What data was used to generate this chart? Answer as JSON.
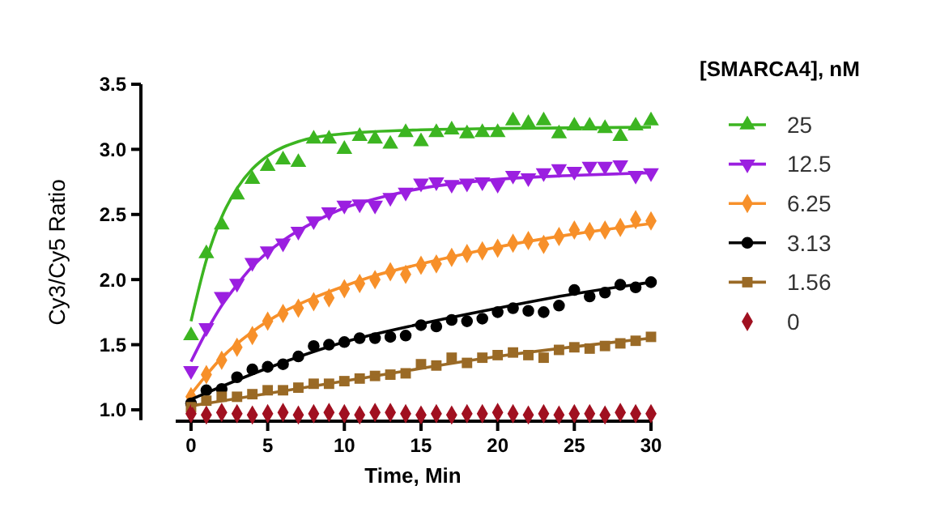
{
  "chart_data": {
    "type": "scatter",
    "xlabel": "Time, Min",
    "ylabel": "Cy3/Cy5 Ratio",
    "legend_title": "[SMARCA4], nM",
    "legend": "right",
    "grid": false,
    "x": [
      0,
      1,
      2,
      3,
      4,
      5,
      6,
      7,
      8,
      9,
      10,
      11,
      12,
      13,
      14,
      15,
      16,
      17,
      18,
      19,
      20,
      21,
      22,
      23,
      24,
      25,
      26,
      27,
      28,
      29,
      30
    ],
    "xlim": [
      -1,
      30
    ],
    "xticks": [
      0,
      5,
      10,
      15,
      20,
      25,
      30
    ],
    "ylim": [
      0.92,
      3.5
    ],
    "yticks": [
      {
        "value": 1,
        "label": "1.0"
      },
      {
        "value": 1.5,
        "label": "1.5"
      },
      {
        "value": 2,
        "label": "2.0"
      },
      {
        "value": 2.5,
        "label": "2.5"
      },
      {
        "value": 3,
        "label": "3.0"
      },
      {
        "value": 3.5,
        "label": "3.5"
      }
    ],
    "series": [
      {
        "name": "25",
        "color": "#3cb521",
        "marker": "triangle",
        "values": [
          1.57,
          2.2,
          2.42,
          2.65,
          2.77,
          2.87,
          2.92,
          2.9,
          3.08,
          3.08,
          3.0,
          3.1,
          3.08,
          3.04,
          3.13,
          3.06,
          3.13,
          3.15,
          3.12,
          3.13,
          3.13,
          3.22,
          3.2,
          3.22,
          3.12,
          3.18,
          3.18,
          3.16,
          3.1,
          3.18,
          3.22
        ]
      },
      {
        "name": "12.5",
        "color": "#9b1fe0",
        "marker": "triangle-down",
        "values": [
          1.3,
          1.63,
          1.87,
          1.97,
          2.13,
          2.22,
          2.28,
          2.37,
          2.45,
          2.52,
          2.57,
          2.58,
          2.57,
          2.63,
          2.67,
          2.74,
          2.75,
          2.73,
          2.74,
          2.75,
          2.73,
          2.8,
          2.78,
          2.82,
          2.85,
          2.83,
          2.87,
          2.87,
          2.88,
          2.8,
          2.82
        ]
      },
      {
        "name": "6.25",
        "color": "#f7902a",
        "marker": "diamond",
        "values": [
          1.1,
          1.27,
          1.38,
          1.48,
          1.57,
          1.68,
          1.74,
          1.78,
          1.83,
          1.86,
          1.93,
          1.97,
          2.0,
          2.06,
          2.04,
          2.11,
          2.12,
          2.17,
          2.2,
          2.22,
          2.24,
          2.28,
          2.3,
          2.27,
          2.33,
          2.38,
          2.37,
          2.38,
          2.4,
          2.46,
          2.45
        ]
      },
      {
        "name": "3.13",
        "color": "#000000",
        "marker": "circle",
        "values": [
          1.05,
          1.15,
          1.16,
          1.25,
          1.31,
          1.33,
          1.35,
          1.41,
          1.49,
          1.5,
          1.52,
          1.55,
          1.55,
          1.56,
          1.57,
          1.65,
          1.64,
          1.69,
          1.68,
          1.7,
          1.75,
          1.78,
          1.76,
          1.75,
          1.8,
          1.92,
          1.87,
          1.9,
          1.96,
          1.94,
          1.98
        ]
      },
      {
        "name": "1.56",
        "color": "#9a6a26",
        "marker": "square",
        "values": [
          1.02,
          1.07,
          1.1,
          1.1,
          1.12,
          1.15,
          1.15,
          1.17,
          1.2,
          1.2,
          1.22,
          1.24,
          1.26,
          1.27,
          1.28,
          1.35,
          1.34,
          1.4,
          1.36,
          1.4,
          1.42,
          1.44,
          1.42,
          1.4,
          1.46,
          1.48,
          1.47,
          1.49,
          1.51,
          1.53,
          1.56
        ]
      },
      {
        "name": "0",
        "color": "#a01020",
        "marker": "diamond",
        "values": [
          0.97,
          0.96,
          0.98,
          0.97,
          0.96,
          0.97,
          0.98,
          0.96,
          0.97,
          0.98,
          0.97,
          0.96,
          0.98,
          0.98,
          0.97,
          0.96,
          0.97,
          0.96,
          0.97,
          0.97,
          0.98,
          0.97,
          0.96,
          0.97,
          0.96,
          0.97,
          0.97,
          0.96,
          0.98,
          0.97,
          0.97
        ]
      },
      {
        "type": "line",
        "color": "#3cb521",
        "marker": "none",
        "x": [
          0,
          1,
          2,
          3,
          4,
          5,
          7,
          10,
          15,
          20,
          30
        ],
        "values": [
          1.68,
          2.15,
          2.48,
          2.7,
          2.85,
          2.95,
          3.06,
          3.12,
          3.15,
          3.16,
          3.17
        ]
      },
      {
        "type": "line",
        "color": "#9b1fe0",
        "marker": "none",
        "x": [
          0,
          1,
          2,
          3,
          4,
          5,
          6,
          8,
          10,
          12,
          15,
          20,
          25,
          30
        ],
        "values": [
          1.37,
          1.6,
          1.8,
          1.96,
          2.1,
          2.21,
          2.3,
          2.44,
          2.55,
          2.62,
          2.7,
          2.77,
          2.8,
          2.82
        ]
      },
      {
        "type": "line",
        "color": "#f7902a",
        "marker": "none",
        "x": [
          0,
          2,
          4,
          6,
          8,
          10,
          12,
          15,
          20,
          25,
          30
        ],
        "values": [
          1.12,
          1.4,
          1.6,
          1.75,
          1.86,
          1.95,
          2.03,
          2.12,
          2.25,
          2.35,
          2.43
        ]
      },
      {
        "type": "line",
        "color": "#000000",
        "marker": "none",
        "x": [
          0,
          5,
          10,
          15,
          20,
          25,
          30
        ],
        "values": [
          1.08,
          1.32,
          1.52,
          1.66,
          1.78,
          1.89,
          1.98
        ]
      },
      {
        "type": "line",
        "color": "#9a6a26",
        "marker": "none",
        "x": [
          0,
          10,
          20,
          30
        ],
        "values": [
          1.03,
          1.22,
          1.41,
          1.55
        ]
      }
    ]
  }
}
